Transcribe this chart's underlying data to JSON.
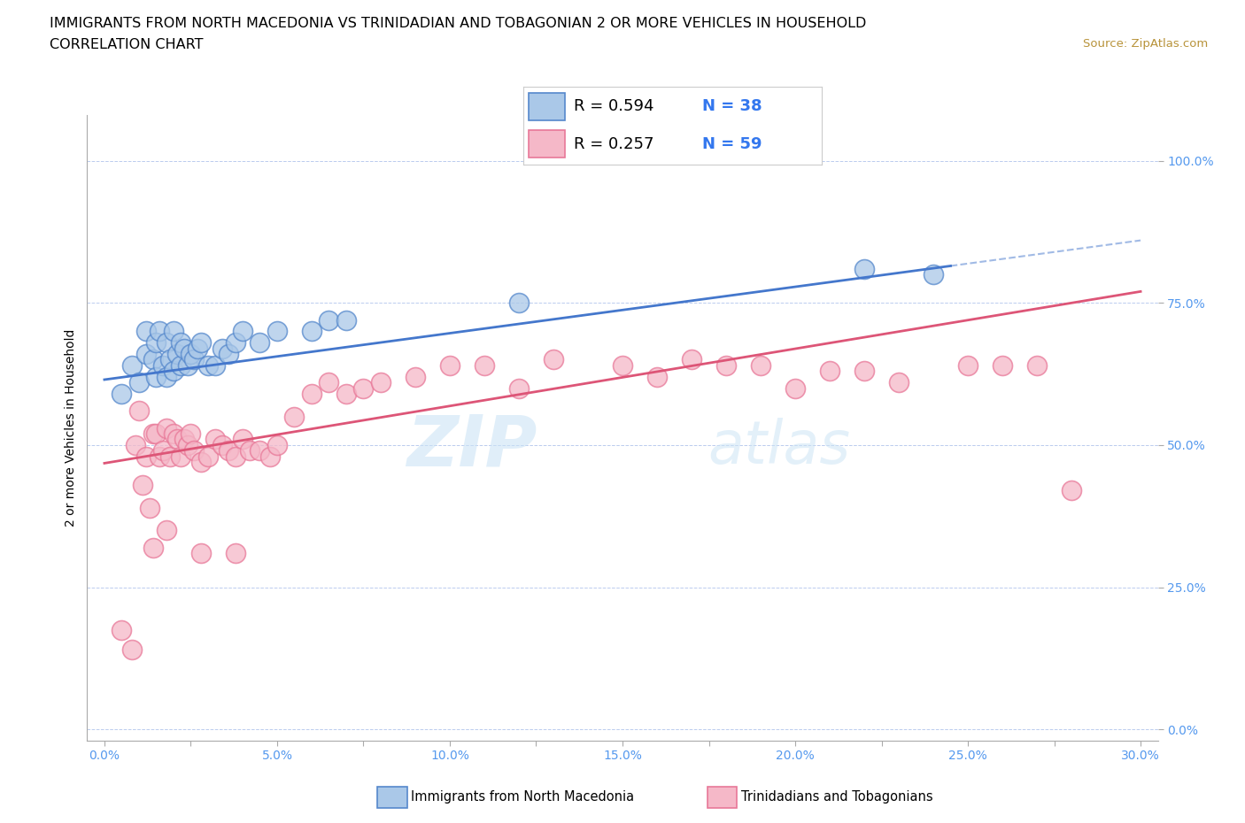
{
  "title": "IMMIGRANTS FROM NORTH MACEDONIA VS TRINIDADIAN AND TOBAGONIAN 2 OR MORE VEHICLES IN HOUSEHOLD",
  "subtitle": "CORRELATION CHART",
  "source": "Source: ZipAtlas.com",
  "xlabel_ticks": [
    "0.0%",
    "",
    "5.0%",
    "",
    "10.0%",
    "",
    "15.0%",
    "",
    "20.0%",
    "",
    "25.0%",
    "",
    "30.0%"
  ],
  "ylabel_ticks": [
    "0.0%",
    "25.0%",
    "50.0%",
    "75.0%",
    "100.0%"
  ],
  "xlim": [
    -0.005,
    0.305
  ],
  "ylim": [
    -0.02,
    1.08
  ],
  "blue_label": "Immigrants from North Macedonia",
  "pink_label": "Trinidadians and Tobagonians",
  "blue_R": "R = 0.594",
  "blue_N": "N = 38",
  "pink_R": "R = 0.257",
  "pink_N": "N = 59",
  "blue_color": "#aac8e8",
  "pink_color": "#f5b8c8",
  "blue_edge_color": "#5588cc",
  "pink_edge_color": "#e87898",
  "blue_line_color": "#4477cc",
  "pink_line_color": "#dd5577",
  "watermark_zip": "ZIP",
  "watermark_atlas": "atlas",
  "blue_scatter_x": [
    0.005,
    0.008,
    0.01,
    0.012,
    0.012,
    0.014,
    0.015,
    0.015,
    0.016,
    0.017,
    0.018,
    0.018,
    0.019,
    0.02,
    0.02,
    0.021,
    0.022,
    0.022,
    0.023,
    0.024,
    0.025,
    0.026,
    0.027,
    0.028,
    0.03,
    0.032,
    0.034,
    0.036,
    0.038,
    0.04,
    0.045,
    0.05,
    0.06,
    0.065,
    0.07,
    0.12,
    0.22,
    0.24
  ],
  "blue_scatter_y": [
    0.59,
    0.64,
    0.61,
    0.66,
    0.7,
    0.65,
    0.62,
    0.68,
    0.7,
    0.64,
    0.62,
    0.68,
    0.65,
    0.63,
    0.7,
    0.66,
    0.64,
    0.68,
    0.67,
    0.64,
    0.66,
    0.65,
    0.67,
    0.68,
    0.64,
    0.64,
    0.67,
    0.66,
    0.68,
    0.7,
    0.68,
    0.7,
    0.7,
    0.72,
    0.72,
    0.75,
    0.81,
    0.8
  ],
  "pink_scatter_x": [
    0.005,
    0.008,
    0.009,
    0.01,
    0.011,
    0.012,
    0.013,
    0.014,
    0.015,
    0.016,
    0.017,
    0.018,
    0.019,
    0.02,
    0.021,
    0.022,
    0.023,
    0.024,
    0.025,
    0.026,
    0.028,
    0.03,
    0.032,
    0.034,
    0.036,
    0.038,
    0.04,
    0.042,
    0.045,
    0.048,
    0.05,
    0.055,
    0.06,
    0.065,
    0.07,
    0.075,
    0.08,
    0.09,
    0.1,
    0.11,
    0.12,
    0.13,
    0.15,
    0.16,
    0.17,
    0.18,
    0.19,
    0.2,
    0.21,
    0.22,
    0.23,
    0.25,
    0.26,
    0.27,
    0.014,
    0.018,
    0.028,
    0.038,
    0.28
  ],
  "pink_scatter_y": [
    0.175,
    0.14,
    0.5,
    0.56,
    0.43,
    0.48,
    0.39,
    0.52,
    0.52,
    0.48,
    0.49,
    0.53,
    0.48,
    0.52,
    0.51,
    0.48,
    0.51,
    0.5,
    0.52,
    0.49,
    0.47,
    0.48,
    0.51,
    0.5,
    0.49,
    0.48,
    0.51,
    0.49,
    0.49,
    0.48,
    0.5,
    0.55,
    0.59,
    0.61,
    0.59,
    0.6,
    0.61,
    0.62,
    0.64,
    0.64,
    0.6,
    0.65,
    0.64,
    0.62,
    0.65,
    0.64,
    0.64,
    0.6,
    0.63,
    0.63,
    0.61,
    0.64,
    0.64,
    0.64,
    0.32,
    0.35,
    0.31,
    0.31,
    0.42
  ]
}
